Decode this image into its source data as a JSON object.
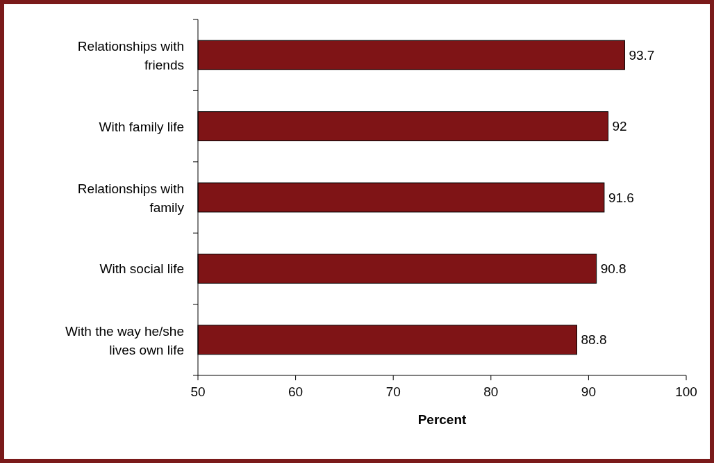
{
  "chart_data": {
    "type": "bar",
    "orientation": "horizontal",
    "categories": [
      "Relationships with friends",
      "With family life",
      "Relationships with family",
      "With social life",
      "With the way he/she lives own life"
    ],
    "values": [
      93.7,
      92,
      91.6,
      90.8,
      88.8
    ],
    "color": "#7f1416",
    "xlabel": "Percent",
    "xlim": [
      50,
      100
    ],
    "xticks": [
      50,
      60,
      70,
      80,
      90,
      100
    ],
    "data_labels": true
  }
}
